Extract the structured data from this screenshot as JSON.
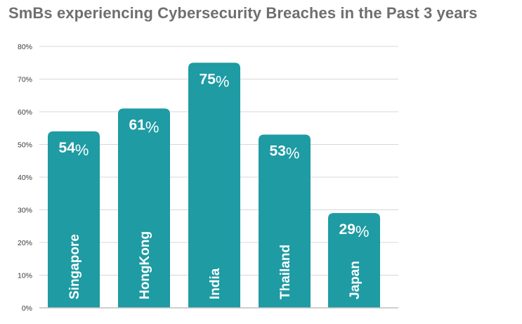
{
  "chart_data": {
    "type": "bar",
    "title": "SmBs experiencing Cybersecurity Breaches in the Past 3 years",
    "categories": [
      "Singapore",
      "HongKong",
      "India",
      "Thailand",
      "Japan"
    ],
    "values": [
      54,
      61,
      75,
      53,
      29
    ],
    "value_labels": [
      "54",
      "61",
      "75",
      "53",
      "29"
    ],
    "value_suffix": "%",
    "yticks": [
      "0%",
      "10%",
      "20%",
      "30%",
      "40%",
      "50%",
      "60%",
      "70%",
      "80%"
    ],
    "ylim": [
      0,
      80
    ],
    "xlabel": "",
    "ylabel": "",
    "grid": true,
    "legend": "none",
    "colors": {
      "bar": "#1e9ba3",
      "title": "#6f6f6f",
      "grid": "#d7d7d7",
      "label": "#ffffff"
    }
  }
}
